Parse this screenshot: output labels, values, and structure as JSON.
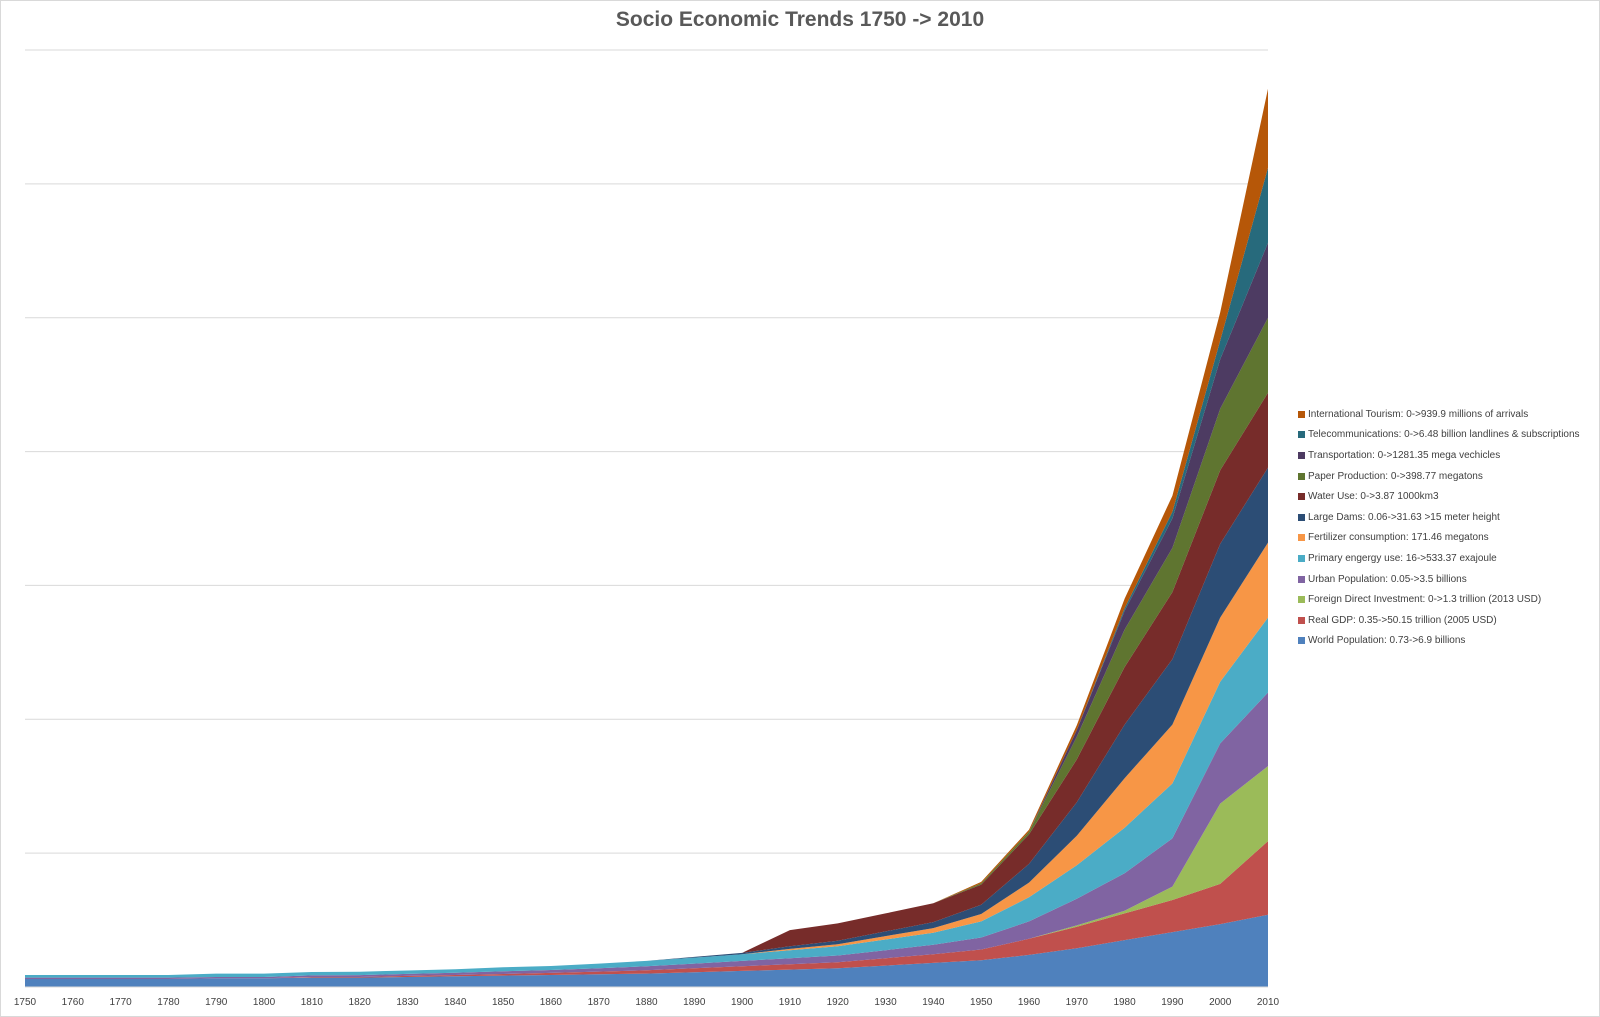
{
  "chart_data": {
    "type": "area",
    "stacked": true,
    "title": "Socio Economic Trends 1750 -> 2010",
    "xlabel": "",
    "ylabel": "",
    "ylim": [
      0,
      7
    ],
    "grid": true,
    "legend_position": "right",
    "x": [
      "1750",
      "1760",
      "1770",
      "1780",
      "1790",
      "1800",
      "1810",
      "1820",
      "1830",
      "1840",
      "1850",
      "1860",
      "1870",
      "1880",
      "1890",
      "1900",
      "1910",
      "1920",
      "1930",
      "1940",
      "1950",
      "1960",
      "1970",
      "1980",
      "1990",
      "2000",
      "2010"
    ],
    "series": [
      {
        "name": "World Population: 0.73->6.9 billions",
        "color": "#4f81bd",
        "values": [
          0.06,
          0.06,
          0.06,
          0.06,
          0.065,
          0.065,
          0.07,
          0.07,
          0.075,
          0.08,
          0.085,
          0.09,
          0.095,
          0.1,
          0.11,
          0.12,
          0.13,
          0.14,
          0.16,
          0.18,
          0.2,
          0.24,
          0.29,
          0.35,
          0.41,
          0.47,
          0.54
        ]
      },
      {
        "name": "Real GDP: 0.35->50.15 trillion (2005 USD)",
        "color": "#c0504d",
        "values": [
          0,
          0,
          0,
          0,
          0,
          0,
          0.005,
          0.005,
          0.008,
          0.01,
          0.012,
          0.015,
          0.02,
          0.025,
          0.03,
          0.035,
          0.04,
          0.045,
          0.055,
          0.065,
          0.08,
          0.12,
          0.16,
          0.2,
          0.24,
          0.3,
          0.55
        ]
      },
      {
        "name": "Foreign Direct Investment: 0->1.3 trillion (2013 USD)",
        "color": "#9bbb59",
        "values": [
          0,
          0,
          0,
          0,
          0,
          0,
          0,
          0,
          0,
          0,
          0,
          0,
          0,
          0,
          0,
          0,
          0,
          0,
          0,
          0,
          0,
          0,
          0.01,
          0.02,
          0.1,
          0.6,
          0.56
        ]
      },
      {
        "name": "Urban Population: 0.05->3.5 billions",
        "color": "#8064a2",
        "values": [
          0.01,
          0.01,
          0.01,
          0.01,
          0.01,
          0.01,
          0.012,
          0.014,
          0.015,
          0.017,
          0.02,
          0.022,
          0.025,
          0.03,
          0.035,
          0.04,
          0.045,
          0.05,
          0.06,
          0.07,
          0.09,
          0.13,
          0.2,
          0.28,
          0.36,
          0.45,
          0.55
        ]
      },
      {
        "name": "Primary engergy use: 16->533.37 exajoule",
        "color": "#4bacc6",
        "values": [
          0.02,
          0.02,
          0.02,
          0.02,
          0.025,
          0.025,
          0.025,
          0.025,
          0.025,
          0.025,
          0.03,
          0.03,
          0.035,
          0.04,
          0.045,
          0.05,
          0.06,
          0.07,
          0.08,
          0.09,
          0.12,
          0.18,
          0.25,
          0.34,
          0.41,
          0.46,
          0.56
        ]
      },
      {
        "name": "Fertilizer consumption: 171.46 megatons",
        "color": "#f79646",
        "values": [
          0,
          0,
          0,
          0,
          0,
          0,
          0,
          0,
          0,
          0,
          0,
          0,
          0,
          0,
          0,
          0,
          0.01,
          0.015,
          0.025,
          0.035,
          0.055,
          0.11,
          0.22,
          0.37,
          0.44,
          0.48,
          0.56
        ]
      },
      {
        "name": "Large Dams: 0.06->31.63 >15 meter height",
        "color": "#2c4d75",
        "values": [
          0,
          0,
          0,
          0,
          0,
          0,
          0,
          0,
          0,
          0,
          0,
          0,
          0,
          0,
          0.005,
          0.01,
          0.02,
          0.025,
          0.035,
          0.045,
          0.07,
          0.14,
          0.25,
          0.4,
          0.49,
          0.55,
          0.56
        ]
      },
      {
        "name": "Water Use: 0->3.87 1000km3",
        "color": "#772c2a",
        "values": [
          0,
          0,
          0,
          0,
          0,
          0,
          0,
          0,
          0,
          0,
          0,
          0,
          0,
          0,
          0,
          0,
          0.12,
          0.13,
          0.135,
          0.14,
          0.15,
          0.22,
          0.32,
          0.43,
          0.5,
          0.55,
          0.56
        ]
      },
      {
        "name": "Paper Production: 0->398.77 megatons",
        "color": "#5f7530",
        "values": [
          0,
          0,
          0,
          0,
          0,
          0,
          0,
          0,
          0,
          0,
          0,
          0,
          0,
          0,
          0,
          0,
          0,
          0,
          0,
          0,
          0.01,
          0.02,
          0.17,
          0.28,
          0.33,
          0.46,
          0.56
        ]
      },
      {
        "name": "Transportation: 0->1281.35 mega vechicles",
        "color": "#4d3b62",
        "values": [
          0,
          0,
          0,
          0,
          0,
          0,
          0,
          0,
          0,
          0,
          0,
          0,
          0,
          0,
          0,
          0,
          0,
          0,
          0,
          0,
          0,
          0,
          0.05,
          0.14,
          0.22,
          0.37,
          0.56
        ]
      },
      {
        "name": "Telecommunications: 0->6.48 billion landlines & subscriptions",
        "color": "#276a7c",
        "values": [
          0,
          0,
          0,
          0,
          0,
          0,
          0,
          0,
          0,
          0,
          0,
          0,
          0,
          0,
          0,
          0,
          0,
          0,
          0,
          0,
          0,
          0,
          0,
          0.02,
          0.05,
          0.14,
          0.56
        ]
      },
      {
        "name": "International Tourism: 0->939.9 millions of arrivals",
        "color": "#b65708",
        "values": [
          0,
          0,
          0,
          0,
          0,
          0,
          0,
          0,
          0,
          0,
          0,
          0,
          0,
          0,
          0,
          0,
          0,
          0,
          0,
          0,
          0.01,
          0.015,
          0.035,
          0.07,
          0.12,
          0.21,
          0.59
        ]
      }
    ]
  }
}
